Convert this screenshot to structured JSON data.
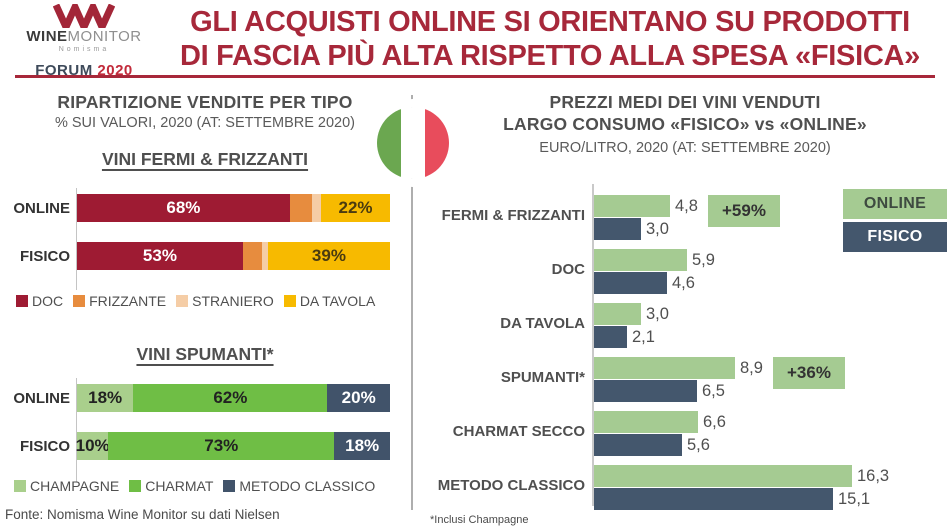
{
  "header": {
    "logo": {
      "mark": "wm-monogram",
      "wine": "WINE",
      "monitor": "MONITOR",
      "nomisma": "Nomisma",
      "forum": "FORUM",
      "year": "2020"
    },
    "title_line1": "GLI ACQUISTI ONLINE SI ORIENTANO SU PRODOTTI",
    "title_line2": "DI FASCIA PIÙ ALTA RISPETTO ALLA SPESA «FISICA»"
  },
  "left_panel": {
    "title": "RIPARTIZIONE VENDITE PER TIPO",
    "subtitle": "% SUI VALORI, 2020 (AT: SETTEMBRE 2020)",
    "source": "Fonte: Nomisma Wine Monitor su dati Nielsen"
  },
  "right_panel": {
    "title_line1": "PREZZI MEDI DEI VINI VENDUTI",
    "title_line2": "LARGO CONSUMO «FISICO» vs «ONLINE»",
    "subtitle": "EURO/LITRO, 2020 (AT: SETTEMBRE 2020)",
    "footnote": "*Inclusi Champagne",
    "legend": {
      "online": "ONLINE",
      "fisico": "FISICO"
    }
  },
  "colors": {
    "accent_red": "#A7283A",
    "doc": "#9E1B33",
    "frizzante": "#E78C3E",
    "straniero": "#F5CDA6",
    "da_tavola": "#F7BA00",
    "champagne": "#A9CF8C",
    "charmat": "#6FBE45",
    "metodo_classico": "#41536A",
    "online_green": "#A5CB92",
    "fisico_slate": "#44576D",
    "flag_green": "#6BA750",
    "flag_white": "#FFFFFF",
    "flag_red": "#E84C5C"
  },
  "chart_data": [
    {
      "id": "vini-fermi-frizzanti",
      "type": "bar",
      "subtype": "stacked-horizontal-100",
      "title": "VINI FERMI & FRIZZANTI",
      "unit": "% of value",
      "categories": [
        "ONLINE",
        "FISICO"
      ],
      "series": [
        {
          "name": "DOC",
          "color_key": "doc",
          "values": [
            68,
            53
          ],
          "show_label": true,
          "label_color": "#FFFFFF"
        },
        {
          "name": "FRIZZANTE",
          "color_key": "frizzante",
          "values": [
            7,
            6
          ],
          "show_label": false,
          "label_color": "#FFFFFF"
        },
        {
          "name": "STRANIERO",
          "color_key": "straniero",
          "values": [
            3,
            2
          ],
          "show_label": false,
          "label_color": "#333333"
        },
        {
          "name": "DA TAVOLA",
          "color_key": "da_tavola",
          "values": [
            22,
            39
          ],
          "show_label": true,
          "label_color": "#4A3B10"
        }
      ]
    },
    {
      "id": "vini-spumanti",
      "type": "bar",
      "subtype": "stacked-horizontal-100",
      "title": "VINI SPUMANTI*",
      "unit": "% of value",
      "categories": [
        "ONLINE",
        "FISICO"
      ],
      "series": [
        {
          "name": "CHAMPAGNE",
          "color_key": "champagne",
          "values": [
            18,
            10
          ],
          "show_label": true,
          "label_color": "#222222"
        },
        {
          "name": "CHARMAT",
          "color_key": "charmat",
          "values": [
            62,
            73
          ],
          "show_label": true,
          "label_color": "#222222"
        },
        {
          "name": "METODO CLASSICO",
          "color_key": "metodo_classico",
          "values": [
            20,
            18
          ],
          "show_label": true,
          "label_color": "#FFFFFF"
        }
      ]
    },
    {
      "id": "prezzi-medi",
      "type": "bar",
      "subtype": "grouped-horizontal",
      "title": "PREZZI MEDI DEI VINI VENDUTI LARGO CONSUMO «FISICO» vs «ONLINE»",
      "unit": "euro/litro",
      "xlim": [
        0,
        17.5
      ],
      "categories": [
        "FERMI & FRIZZANTI",
        "DOC",
        "DA TAVOLA",
        "SPUMANTI*",
        "CHARMAT SECCO",
        "METODO CLASSICO"
      ],
      "series": [
        {
          "name": "ONLINE",
          "color_key": "online_green",
          "values": [
            4.8,
            5.9,
            3.0,
            8.9,
            6.6,
            16.3
          ],
          "labels": [
            "4,8",
            "5,9",
            "3,0",
            "8,9",
            "6,6",
            "16,3"
          ]
        },
        {
          "name": "FISICO",
          "color_key": "fisico_slate",
          "values": [
            3.0,
            4.6,
            2.1,
            6.5,
            5.6,
            15.1
          ],
          "labels": [
            "3,0",
            "4,6",
            "2,1",
            "6,5",
            "5,6",
            "15,1"
          ]
        }
      ],
      "badges": [
        {
          "row_index": 0,
          "text": "+59%"
        },
        {
          "row_index": 3,
          "text": "+36%"
        }
      ]
    }
  ]
}
